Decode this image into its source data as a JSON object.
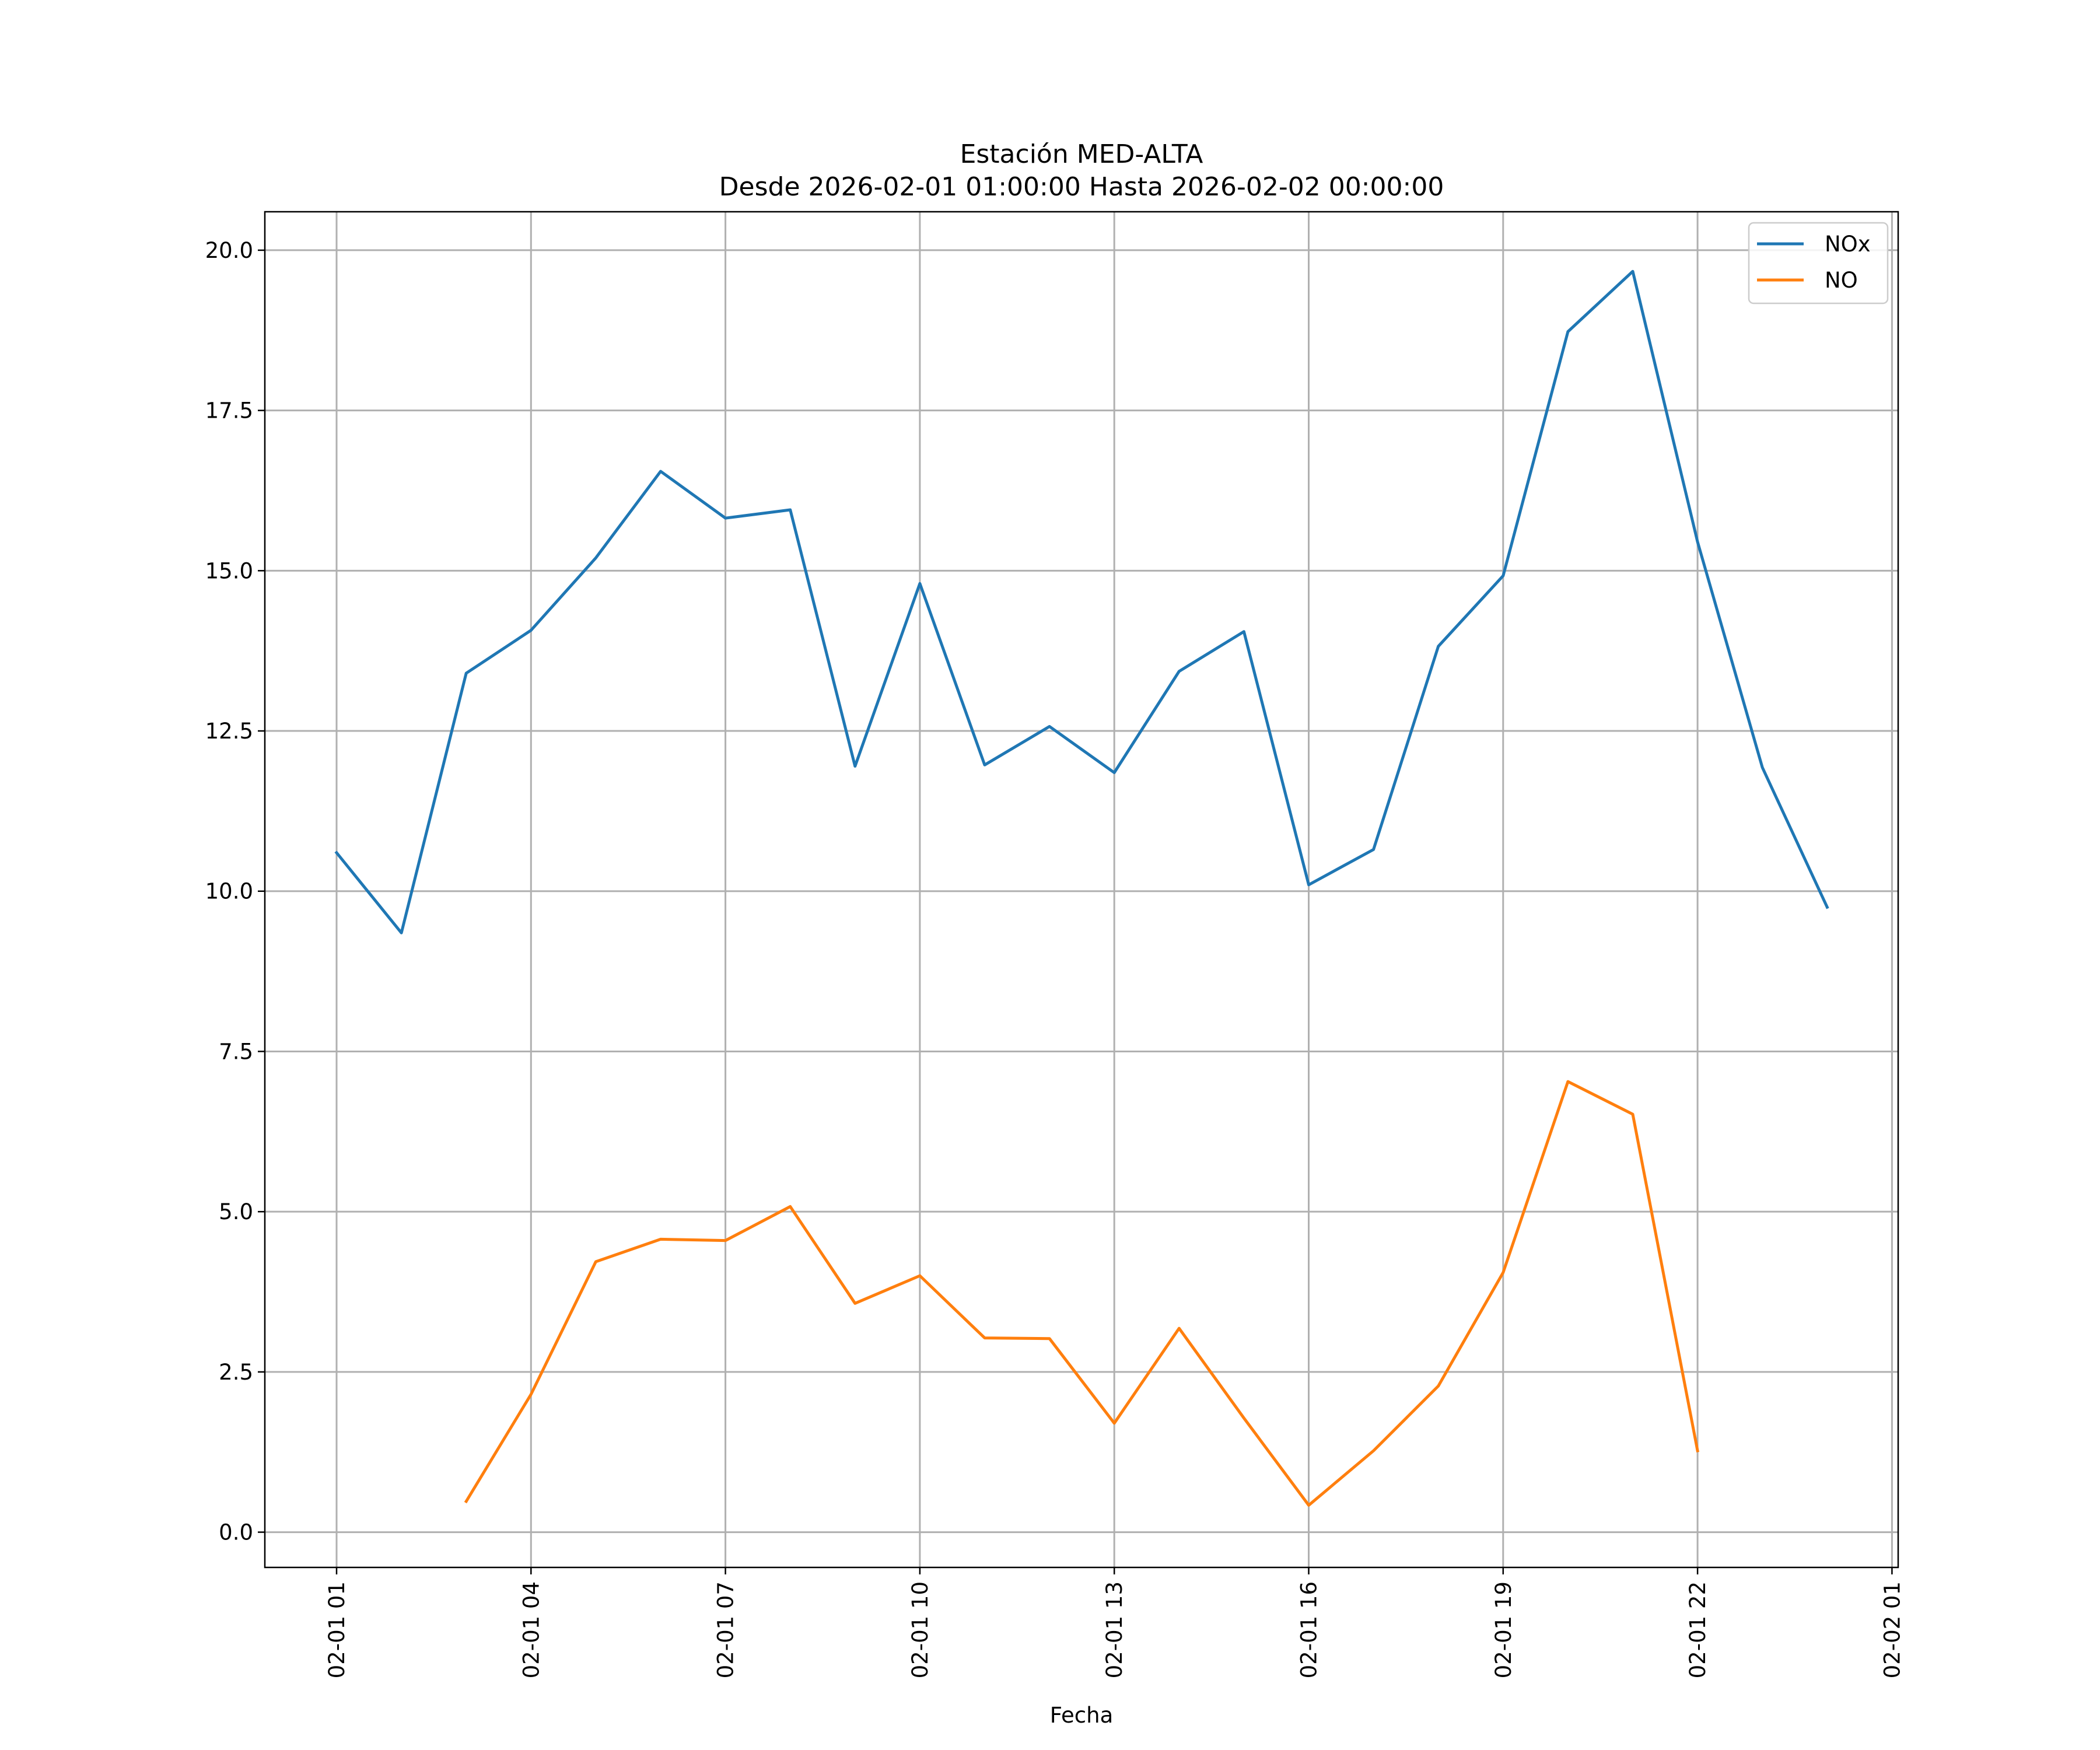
{
  "chart_data": {
    "type": "line",
    "title": "Estación MED-ALTA",
    "subtitle": "Desde 2026-02-01 01:00:00 Hasta 2026-02-02 00:00:00",
    "xlabel": "Fecha",
    "ylabel": "",
    "x": [
      "02-01 01",
      "02-01 02",
      "02-01 03",
      "02-01 04",
      "02-01 05",
      "02-01 06",
      "02-01 07",
      "02-01 08",
      "02-01 09",
      "02-01 10",
      "02-01 11",
      "02-01 12",
      "02-01 13",
      "02-01 14",
      "02-01 15",
      "02-01 16",
      "02-01 17",
      "02-01 18",
      "02-01 19",
      "02-01 20",
      "02-01 21",
      "02-01 22",
      "02-01 23",
      "02-02 00"
    ],
    "x_ticks": [
      "02-01 01",
      "02-01 04",
      "02-01 07",
      "02-01 10",
      "02-01 13",
      "02-01 16",
      "02-01 19",
      "02-01 22",
      "02-02 01"
    ],
    "x_range": [
      "02-01 00:00 - 0.85h",
      "02-02 01:05"
    ],
    "ylim": [
      -0.55,
      20.6
    ],
    "y_ticks": [
      0.0,
      2.5,
      5.0,
      7.5,
      10.0,
      12.5,
      15.0,
      17.5,
      20.0
    ],
    "y_tick_labels": [
      "0.0",
      "2.5",
      "5.0",
      "7.5",
      "10.0",
      "12.5",
      "15.0",
      "17.5",
      "20.0"
    ],
    "grid": true,
    "legend_position": "top-right",
    "series": [
      {
        "name": "NOx",
        "color": "#1f77b4",
        "values": [
          10.6,
          9.35,
          13.4,
          14.07,
          15.2,
          16.55,
          15.82,
          15.95,
          11.95,
          14.8,
          11.97,
          12.57,
          11.85,
          13.43,
          14.05,
          10.1,
          10.65,
          13.82,
          14.92,
          18.73,
          19.67,
          15.45,
          11.93,
          9.75
        ]
      },
      {
        "name": "NO",
        "color": "#ff7f0e",
        "values": [
          null,
          null,
          0.48,
          2.15,
          4.22,
          4.57,
          4.55,
          5.08,
          3.57,
          4.0,
          3.03,
          3.02,
          1.7,
          3.18,
          1.78,
          0.42,
          1.27,
          2.28,
          4.05,
          7.03,
          6.52,
          1.27,
          null,
          null
        ]
      }
    ]
  }
}
